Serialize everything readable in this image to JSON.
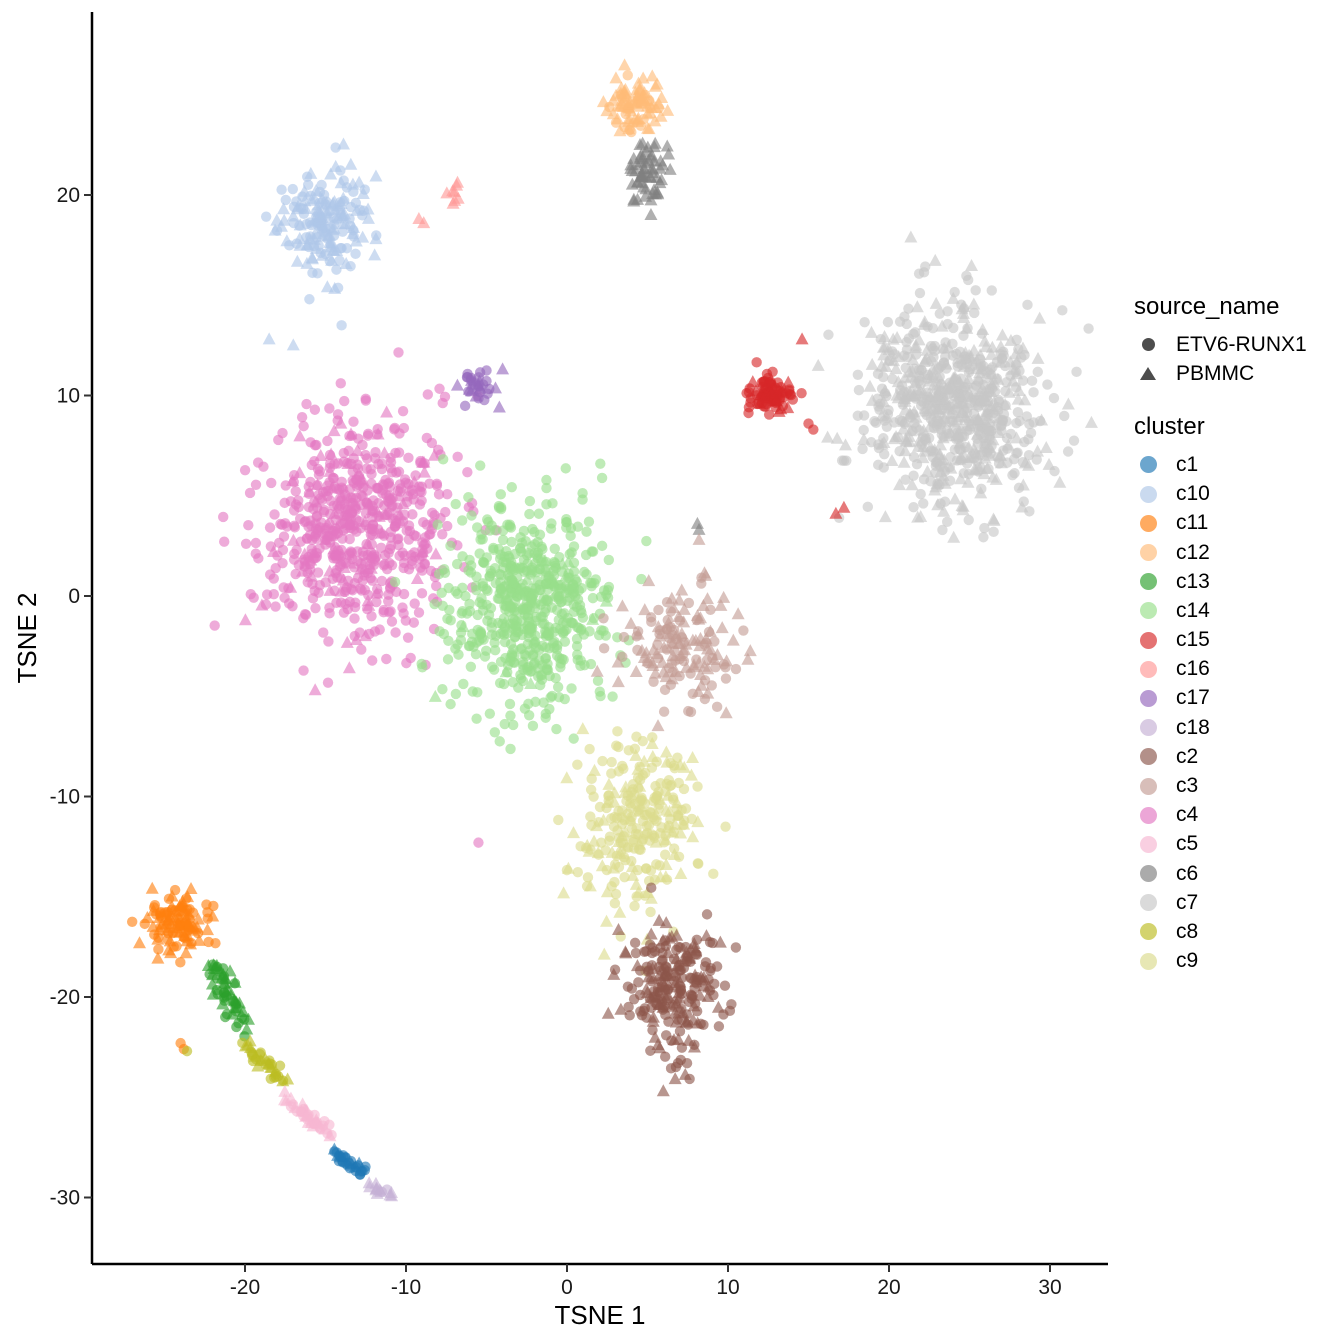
{
  "chart_data": {
    "type": "scatter",
    "xlabel": "TSNE 1",
    "ylabel": "TSNE 2",
    "xlim": [
      -29,
      34
    ],
    "ylim": [
      -33,
      29.2
    ],
    "x_ticks": [
      -20,
      -10,
      0,
      10,
      20,
      30
    ],
    "y_ticks": [
      -30,
      -20,
      -10,
      0,
      10,
      20
    ],
    "grid": false,
    "legend_placement": "right",
    "shape_legend": {
      "title": "source_name",
      "entries": [
        {
          "label": "ETV6-RUNX1",
          "shape": "circle"
        },
        {
          "label": "PBMMC",
          "shape": "triangle"
        }
      ]
    },
    "color_legend": {
      "title": "cluster",
      "entries": [
        {
          "label": "c1",
          "color": "#1f77b4"
        },
        {
          "label": "c10",
          "color": "#aec7e8"
        },
        {
          "label": "c11",
          "color": "#ff7f0e"
        },
        {
          "label": "c12",
          "color": "#ffbb78"
        },
        {
          "label": "c13",
          "color": "#2ca02c"
        },
        {
          "label": "c14",
          "color": "#98df8a"
        },
        {
          "label": "c15",
          "color": "#d62728"
        },
        {
          "label": "c16",
          "color": "#ff9896"
        },
        {
          "label": "c17",
          "color": "#9467bd"
        },
        {
          "label": "c18",
          "color": "#c5b0d5"
        },
        {
          "label": "c2",
          "color": "#8c564b"
        },
        {
          "label": "c3",
          "color": "#c49c94"
        },
        {
          "label": "c4",
          "color": "#e377c2"
        },
        {
          "label": "c5",
          "color": "#f7b6d2"
        },
        {
          "label": "c6",
          "color": "#7f7f7f"
        },
        {
          "label": "c7",
          "color": "#c7c7c7"
        },
        {
          "label": "c8",
          "color": "#bcbd22"
        },
        {
          "label": "c9",
          "color": "#dbdb8d"
        }
      ]
    },
    "clusters": [
      {
        "name": "c7",
        "cx": 24.0,
        "cy": 9.5,
        "sx": 3.6,
        "sy": 3.2,
        "n": 700,
        "tri": 0.45
      },
      {
        "name": "c4",
        "cx": -13.0,
        "cy": 3.5,
        "sx": 4.0,
        "sy": 3.6,
        "n": 650,
        "tri": 0.12
      },
      {
        "name": "c14",
        "cx": -2.5,
        "cy": -0.5,
        "sx": 3.4,
        "sy": 3.4,
        "n": 600,
        "tri": 0.03
      },
      {
        "name": "c10",
        "cx": -15.0,
        "cy": 18.5,
        "sx": 2.0,
        "sy": 1.7,
        "n": 180,
        "tri": 0.5
      },
      {
        "name": "c3",
        "cx": 7.0,
        "cy": -2.5,
        "sx": 2.2,
        "sy": 2.0,
        "n": 150,
        "tri": 0.6
      },
      {
        "name": "c9",
        "cx": 4.5,
        "cy": -11.5,
        "sx": 2.4,
        "sy": 2.8,
        "n": 260,
        "tri": 0.25
      },
      {
        "name": "c2",
        "cx": 6.5,
        "cy": -19.5,
        "sx": 1.9,
        "sy": 2.2,
        "n": 230,
        "tri": 0.4
      },
      {
        "name": "c15",
        "cx": 12.8,
        "cy": 10.0,
        "sx": 0.9,
        "sy": 0.65,
        "n": 90,
        "tri": 0.15
      },
      {
        "name": "c12",
        "cx": 4.2,
        "cy": 24.5,
        "sx": 1.2,
        "sy": 0.9,
        "n": 90,
        "tri": 0.75
      },
      {
        "name": "c6",
        "cx": 5.0,
        "cy": 21.2,
        "sx": 0.8,
        "sy": 1.0,
        "n": 60,
        "tri": 1.0
      },
      {
        "name": "c11",
        "cx": -24.2,
        "cy": -16.3,
        "sx": 1.2,
        "sy": 0.9,
        "n": 110,
        "tri": 0.5
      },
      {
        "name": "c17",
        "cx": -5.5,
        "cy": 10.4,
        "sx": 0.7,
        "sy": 0.5,
        "n": 30,
        "tri": 0.5
      },
      {
        "name": "c16",
        "cx": -7.2,
        "cy": 20.2,
        "sx": 0.3,
        "sy": 0.6,
        "n": 8,
        "tri": 1.0
      }
    ],
    "streams": [
      {
        "name": "c13",
        "from": [
          -22.0,
          -18.5
        ],
        "to": [
          -20.0,
          -21.5
        ],
        "n": 55,
        "spread": 0.55,
        "tri": 0.5
      },
      {
        "name": "c8",
        "from": [
          -20.0,
          -22.5
        ],
        "to": [
          -17.5,
          -24.0
        ],
        "n": 35,
        "spread": 0.35,
        "tri": 0.5
      },
      {
        "name": "c5",
        "from": [
          -17.5,
          -25.0
        ],
        "to": [
          -14.5,
          -27.0
        ],
        "n": 40,
        "spread": 0.35,
        "tri": 0.5
      },
      {
        "name": "c1",
        "from": [
          -14.5,
          -27.5
        ],
        "to": [
          -12.5,
          -29.0
        ],
        "n": 30,
        "spread": 0.3,
        "tri": 0.3
      },
      {
        "name": "c18",
        "from": [
          -12.5,
          -29.5
        ],
        "to": [
          -10.5,
          -29.8
        ],
        "n": 14,
        "spread": 0.25,
        "tri": 0.8
      }
    ],
    "extra_points": [
      {
        "name": "c11",
        "x": -23.8,
        "y": -22.6,
        "tri": false
      },
      {
        "name": "c11",
        "x": -24.0,
        "y": -22.3,
        "tri": false
      },
      {
        "name": "c8",
        "x": -23.6,
        "y": -22.7,
        "tri": false
      },
      {
        "name": "c7",
        "x": 16.9,
        "y": 3.9,
        "tri": false
      },
      {
        "name": "c15",
        "x": 17.2,
        "y": 4.4,
        "tri": true
      },
      {
        "name": "c15",
        "x": 16.7,
        "y": 4.1,
        "tri": true
      },
      {
        "name": "c6",
        "x": 8.1,
        "y": 3.6,
        "tri": true
      },
      {
        "name": "c6",
        "x": 8.2,
        "y": 3.3,
        "tri": true
      },
      {
        "name": "c3",
        "x": 8.2,
        "y": 2.8,
        "tri": true
      },
      {
        "name": "c4",
        "x": -5.5,
        "y": -12.3,
        "tri": false
      },
      {
        "name": "c16",
        "x": -9.2,
        "y": 18.8,
        "tri": true
      },
      {
        "name": "c16",
        "x": -8.9,
        "y": 18.6,
        "tri": true
      },
      {
        "name": "c10",
        "x": -14.0,
        "y": 13.5,
        "tri": false
      },
      {
        "name": "c10",
        "x": -16.0,
        "y": 14.8,
        "tri": false
      },
      {
        "name": "c10",
        "x": -18.5,
        "y": 12.8,
        "tri": true
      },
      {
        "name": "c10",
        "x": -17.0,
        "y": 12.5,
        "tri": true
      },
      {
        "name": "c17",
        "x": -4.0,
        "y": 11.3,
        "tri": true
      },
      {
        "name": "c17",
        "x": -4.2,
        "y": 9.4,
        "tri": true
      },
      {
        "name": "c15",
        "x": 14.6,
        "y": 12.8,
        "tri": true
      },
      {
        "name": "c15",
        "x": 15.0,
        "y": 8.6,
        "tri": false
      },
      {
        "name": "c15",
        "x": 15.3,
        "y": 8.3,
        "tri": false
      }
    ]
  }
}
